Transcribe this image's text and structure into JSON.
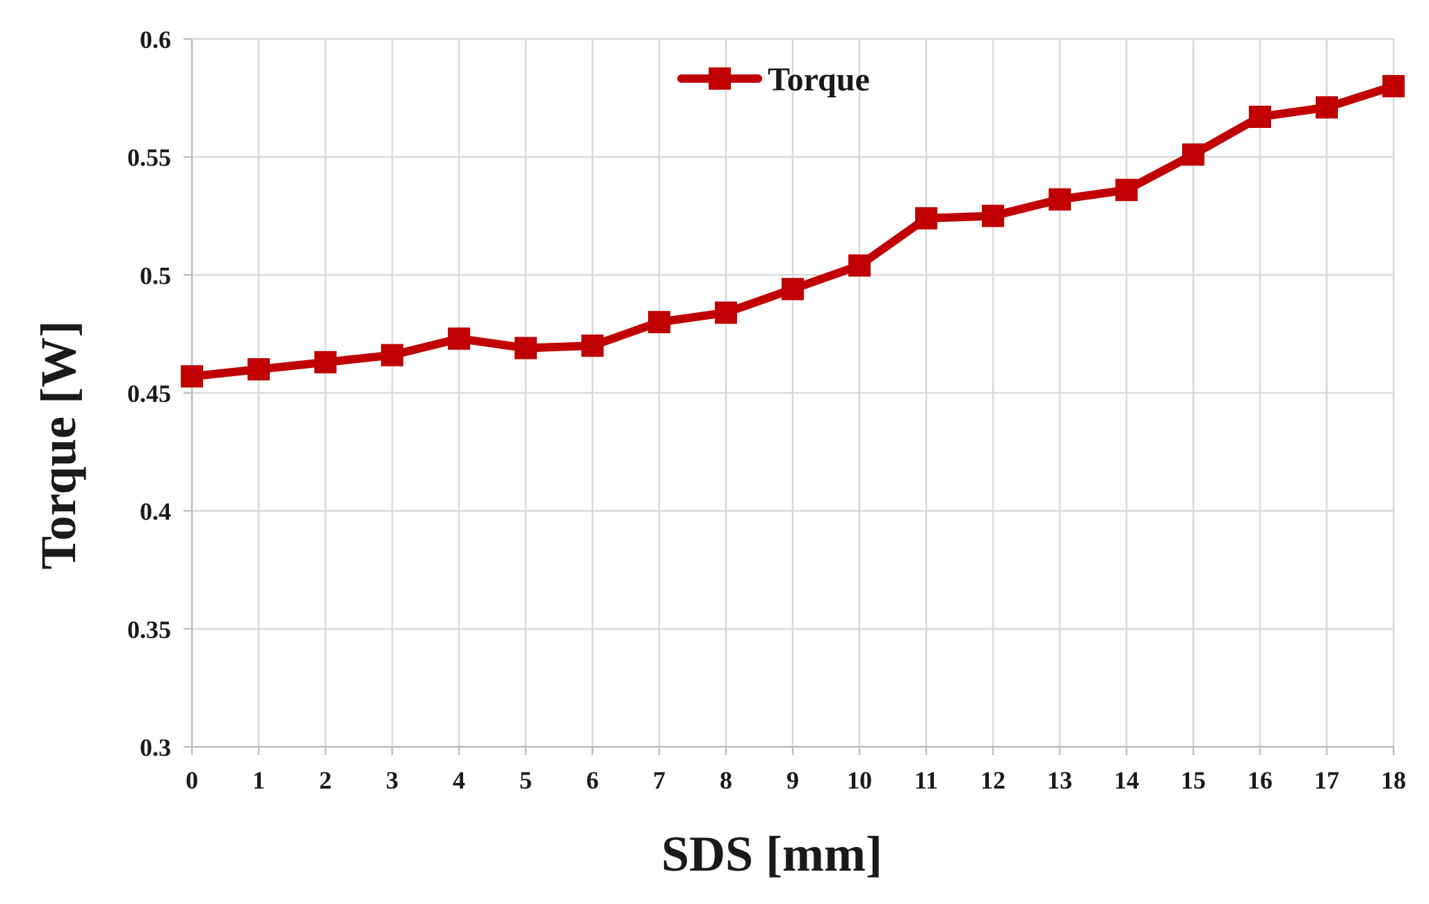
{
  "chart_data": {
    "type": "line",
    "title": "",
    "xlabel": "SDS [mm]",
    "ylabel": "Torque [W]",
    "x": [
      0,
      1,
      2,
      3,
      4,
      5,
      6,
      7,
      8,
      9,
      10,
      11,
      12,
      13,
      14,
      15,
      16,
      17,
      18
    ],
    "xlim": [
      0,
      18
    ],
    "ylim": [
      0.3,
      0.6
    ],
    "yticks": [
      "0.3",
      "0.35",
      "0.4",
      "0.45",
      "0.5",
      "0.55",
      "0.6"
    ],
    "xticks": [
      "0",
      "1",
      "2",
      "3",
      "4",
      "5",
      "6",
      "7",
      "8",
      "9",
      "10",
      "11",
      "12",
      "13",
      "14",
      "15",
      "16",
      "17",
      "18"
    ],
    "grid": true,
    "legend": "top-center",
    "series": [
      {
        "name": "Torque",
        "color": "#c00000",
        "marker": "square",
        "values": [
          0.457,
          0.46,
          0.463,
          0.466,
          0.473,
          0.469,
          0.47,
          0.48,
          0.484,
          0.494,
          0.504,
          0.524,
          0.525,
          0.532,
          0.536,
          0.551,
          0.567,
          0.571,
          0.58
        ]
      }
    ]
  }
}
